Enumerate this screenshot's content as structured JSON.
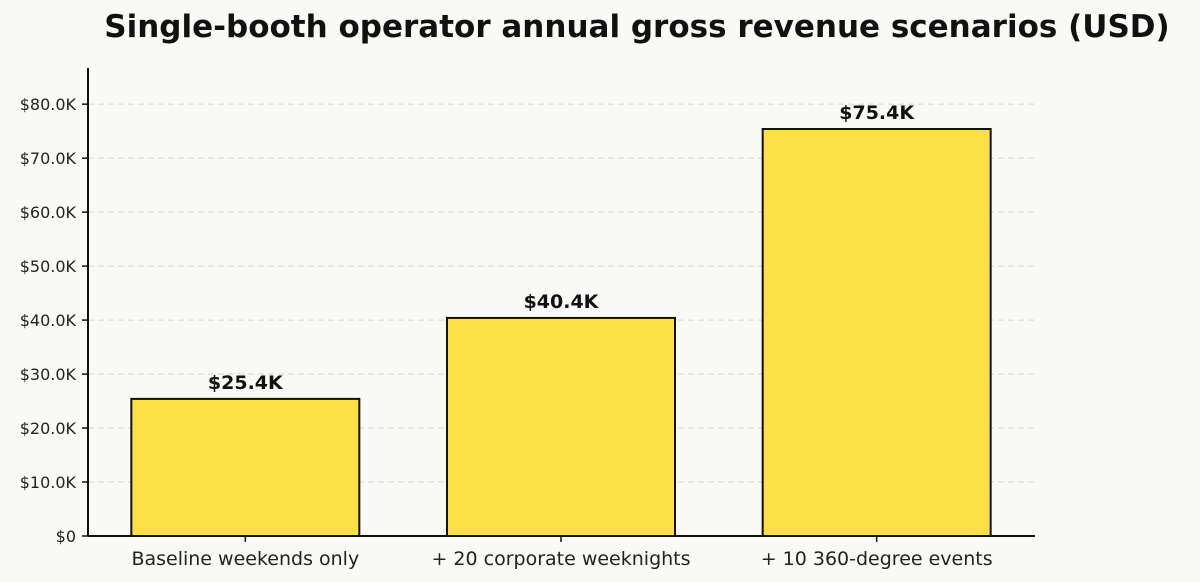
{
  "chart_data": {
    "type": "bar",
    "title": "Single-booth operator annual gross revenue scenarios (USD)",
    "xlabel": "",
    "ylabel": "",
    "categories": [
      "Baseline weekends only",
      "+ 20 corporate weeknights",
      "+ 10 360-degree events"
    ],
    "values": [
      25400,
      40400,
      75400
    ],
    "data_labels": [
      "$25.4K",
      "$40.4K",
      "$75.4K"
    ],
    "ylim": [
      0,
      86700
    ],
    "yticks": [
      0,
      10000,
      20000,
      30000,
      40000,
      50000,
      60000,
      70000,
      80000
    ],
    "ytick_labels": [
      "$0",
      "$10.0K",
      "$20.0K",
      "$30.0K",
      "$40.0K",
      "$50.0K",
      "$60.0K",
      "$70.0K",
      "$80.0K"
    ],
    "grid": "horizontal dashed",
    "bar_color": "#fce045",
    "bar_edge_color": "#111111",
    "background": "#f9f9f6"
  }
}
